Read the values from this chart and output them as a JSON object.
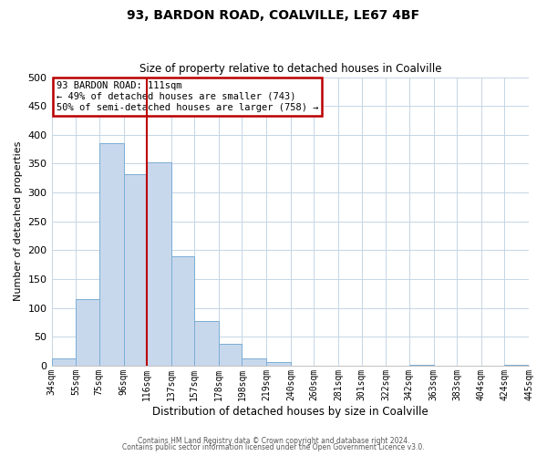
{
  "title": "93, BARDON ROAD, COALVILLE, LE67 4BF",
  "subtitle": "Size of property relative to detached houses in Coalville",
  "xlabel": "Distribution of detached houses by size in Coalville",
  "ylabel": "Number of detached properties",
  "bar_edges": [
    34,
    55,
    75,
    96,
    116,
    137,
    157,
    178,
    198,
    219,
    240,
    260,
    281,
    301,
    322,
    342,
    363,
    383,
    404,
    424,
    445
  ],
  "bar_heights": [
    12,
    115,
    385,
    332,
    352,
    190,
    77,
    38,
    12,
    6,
    0,
    0,
    0,
    0,
    0,
    2,
    0,
    0,
    0,
    2
  ],
  "bar_color": "#c8d8ec",
  "bar_edge_color": "#7aadd4",
  "vline_x": 116,
  "vline_color": "#bb0000",
  "annotation_text": "93 BARDON ROAD: 111sqm\n← 49% of detached houses are smaller (743)\n50% of semi-detached houses are larger (758) →",
  "annotation_box_edgecolor": "#bb0000",
  "annotation_bg": "#ffffff",
  "ylim": [
    0,
    500
  ],
  "yticks": [
    0,
    50,
    100,
    150,
    200,
    250,
    300,
    350,
    400,
    450,
    500
  ],
  "tick_labels": [
    "34sqm",
    "55sqm",
    "75sqm",
    "96sqm",
    "116sqm",
    "137sqm",
    "157sqm",
    "178sqm",
    "198sqm",
    "219sqm",
    "240sqm",
    "260sqm",
    "281sqm",
    "301sqm",
    "322sqm",
    "342sqm",
    "363sqm",
    "383sqm",
    "404sqm",
    "424sqm",
    "445sqm"
  ],
  "footer1": "Contains HM Land Registry data © Crown copyright and database right 2024.",
  "footer2": "Contains public sector information licensed under the Open Government Licence v3.0.",
  "background_color": "#ffffff",
  "grid_color": "#c5d5e5",
  "title_fontsize": 10,
  "subtitle_fontsize": 8.5,
  "ylabel_fontsize": 8,
  "xlabel_fontsize": 8.5,
  "tick_fontsize": 7,
  "ytick_fontsize": 8,
  "ann_fontsize": 7.5,
  "footer_fontsize": 5.5
}
